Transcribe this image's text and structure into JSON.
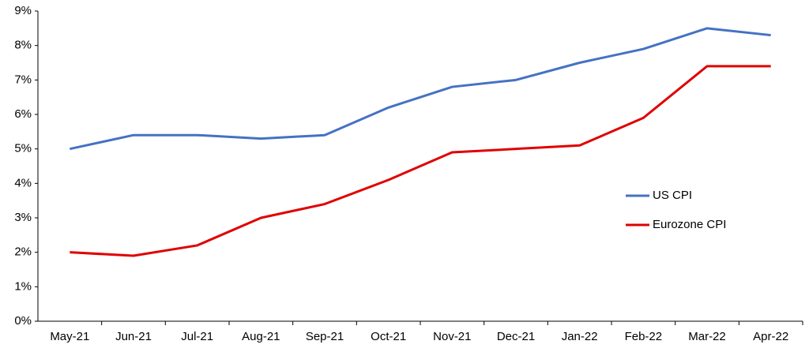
{
  "chart_data": {
    "type": "line",
    "categories": [
      "May-21",
      "Jun-21",
      "Jul-21",
      "Aug-21",
      "Sep-21",
      "Oct-21",
      "Nov-21",
      "Dec-21",
      "Jan-22",
      "Feb-22",
      "Mar-22",
      "Apr-22"
    ],
    "series": [
      {
        "name": "US CPI",
        "color": "#4472c4",
        "values": [
          5.0,
          5.4,
          5.4,
          5.3,
          5.4,
          6.2,
          6.8,
          7.0,
          7.5,
          7.9,
          8.5,
          8.3
        ]
      },
      {
        "name": "Eurozone CPI",
        "color": "#e00000",
        "values": [
          2.0,
          1.9,
          2.2,
          3.0,
          3.4,
          4.1,
          4.9,
          5.0,
          5.1,
          5.9,
          7.4,
          7.4
        ]
      }
    ],
    "ylim": [
      0,
      9
    ],
    "yticks": [
      {
        "value": 0,
        "label": "0%"
      },
      {
        "value": 1,
        "label": "1%"
      },
      {
        "value": 2,
        "label": "2%"
      },
      {
        "value": 3,
        "label": "3%"
      },
      {
        "value": 4,
        "label": "4%"
      },
      {
        "value": 5,
        "label": "5%"
      },
      {
        "value": 6,
        "label": "6%"
      },
      {
        "value": 7,
        "label": "7%"
      },
      {
        "value": 8,
        "label": "8%"
      },
      {
        "value": 9,
        "label": "9%"
      }
    ],
    "grid": false,
    "legend": "right"
  }
}
